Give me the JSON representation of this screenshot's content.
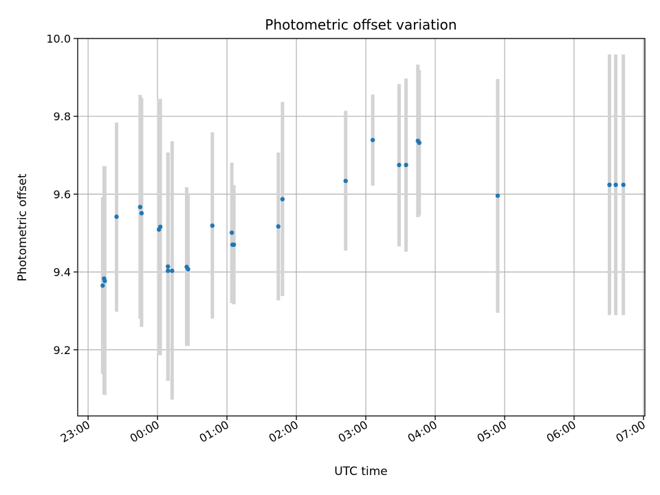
{
  "chart_data": {
    "type": "scatter",
    "title": "Photometric offset variation",
    "xlabel": "UTC time",
    "ylabel": "Photometric offset",
    "x_unit": "hours relative to 00:00 UTC",
    "xlim": [
      -1.15,
      7.02
    ],
    "ylim": [
      9.03,
      10.0
    ],
    "grid": true,
    "x_ticks": [
      {
        "value": -1,
        "label": "23:00"
      },
      {
        "value": 0,
        "label": "00:00"
      },
      {
        "value": 1,
        "label": "01:00"
      },
      {
        "value": 2,
        "label": "02:00"
      },
      {
        "value": 3,
        "label": "03:00"
      },
      {
        "value": 4,
        "label": "04:00"
      },
      {
        "value": 5,
        "label": "05:00"
      },
      {
        "value": 6,
        "label": "06:00"
      },
      {
        "value": 7,
        "label": "07:00"
      }
    ],
    "y_ticks": [
      {
        "value": 9.2,
        "label": "9.2"
      },
      {
        "value": 9.4,
        "label": "9.4"
      },
      {
        "value": 9.6,
        "label": "9.6"
      },
      {
        "value": 9.8,
        "label": "9.8"
      },
      {
        "value": 10.0,
        "label": "10.0"
      }
    ],
    "point_color": "#1f77b4",
    "errorbar_color": "#d3d3d3",
    "points": [
      {
        "x": -0.79,
        "y": 9.365,
        "err_low": 9.138,
        "err_high": 9.592
      },
      {
        "x": -0.77,
        "y": 9.383,
        "err_low": 9.084,
        "err_high": 9.672
      },
      {
        "x": -0.76,
        "y": 9.377,
        "err_low": 9.084,
        "err_high": 9.672
      },
      {
        "x": -0.59,
        "y": 9.542,
        "err_low": 9.298,
        "err_high": 9.784
      },
      {
        "x": -0.25,
        "y": 9.567,
        "err_low": 9.28,
        "err_high": 9.855
      },
      {
        "x": -0.23,
        "y": 9.551,
        "err_low": 9.259,
        "err_high": 9.847
      },
      {
        "x": 0.02,
        "y": 9.509,
        "err_low": 9.188,
        "err_high": 9.84
      },
      {
        "x": 0.04,
        "y": 9.516,
        "err_low": 9.186,
        "err_high": 9.845
      },
      {
        "x": 0.15,
        "y": 9.414,
        "err_low": 9.12,
        "err_high": 9.707
      },
      {
        "x": 0.15,
        "y": 9.403,
        "err_low": 9.12,
        "err_high": 9.707
      },
      {
        "x": 0.21,
        "y": 9.403,
        "err_low": 9.072,
        "err_high": 9.736
      },
      {
        "x": 0.42,
        "y": 9.413,
        "err_low": 9.21,
        "err_high": 9.618
      },
      {
        "x": 0.44,
        "y": 9.407,
        "err_low": 9.21,
        "err_high": 9.6
      },
      {
        "x": 0.79,
        "y": 9.519,
        "err_low": 9.28,
        "err_high": 9.759
      },
      {
        "x": 1.07,
        "y": 9.501,
        "err_low": 9.32,
        "err_high": 9.681
      },
      {
        "x": 1.08,
        "y": 9.47,
        "err_low": 9.32,
        "err_high": 9.62
      },
      {
        "x": 1.1,
        "y": 9.47,
        "err_low": 9.317,
        "err_high": 9.623
      },
      {
        "x": 1.74,
        "y": 9.517,
        "err_low": 9.327,
        "err_high": 9.707
      },
      {
        "x": 1.8,
        "y": 9.587,
        "err_low": 9.338,
        "err_high": 9.837
      },
      {
        "x": 2.71,
        "y": 9.634,
        "err_low": 9.455,
        "err_high": 9.814
      },
      {
        "x": 3.1,
        "y": 9.739,
        "err_low": 9.622,
        "err_high": 9.856
      },
      {
        "x": 3.48,
        "y": 9.675,
        "err_low": 9.466,
        "err_high": 9.883
      },
      {
        "x": 3.58,
        "y": 9.675,
        "err_low": 9.452,
        "err_high": 9.897
      },
      {
        "x": 3.75,
        "y": 9.737,
        "err_low": 9.541,
        "err_high": 9.933
      },
      {
        "x": 3.77,
        "y": 9.732,
        "err_low": 9.545,
        "err_high": 9.919
      },
      {
        "x": 4.9,
        "y": 9.596,
        "err_low": 9.295,
        "err_high": 9.896
      },
      {
        "x": 6.51,
        "y": 9.624,
        "err_low": 9.289,
        "err_high": 9.959
      },
      {
        "x": 6.6,
        "y": 9.624,
        "err_low": 9.289,
        "err_high": 9.959
      },
      {
        "x": 6.71,
        "y": 9.624,
        "err_low": 9.289,
        "err_high": 9.959
      }
    ]
  }
}
